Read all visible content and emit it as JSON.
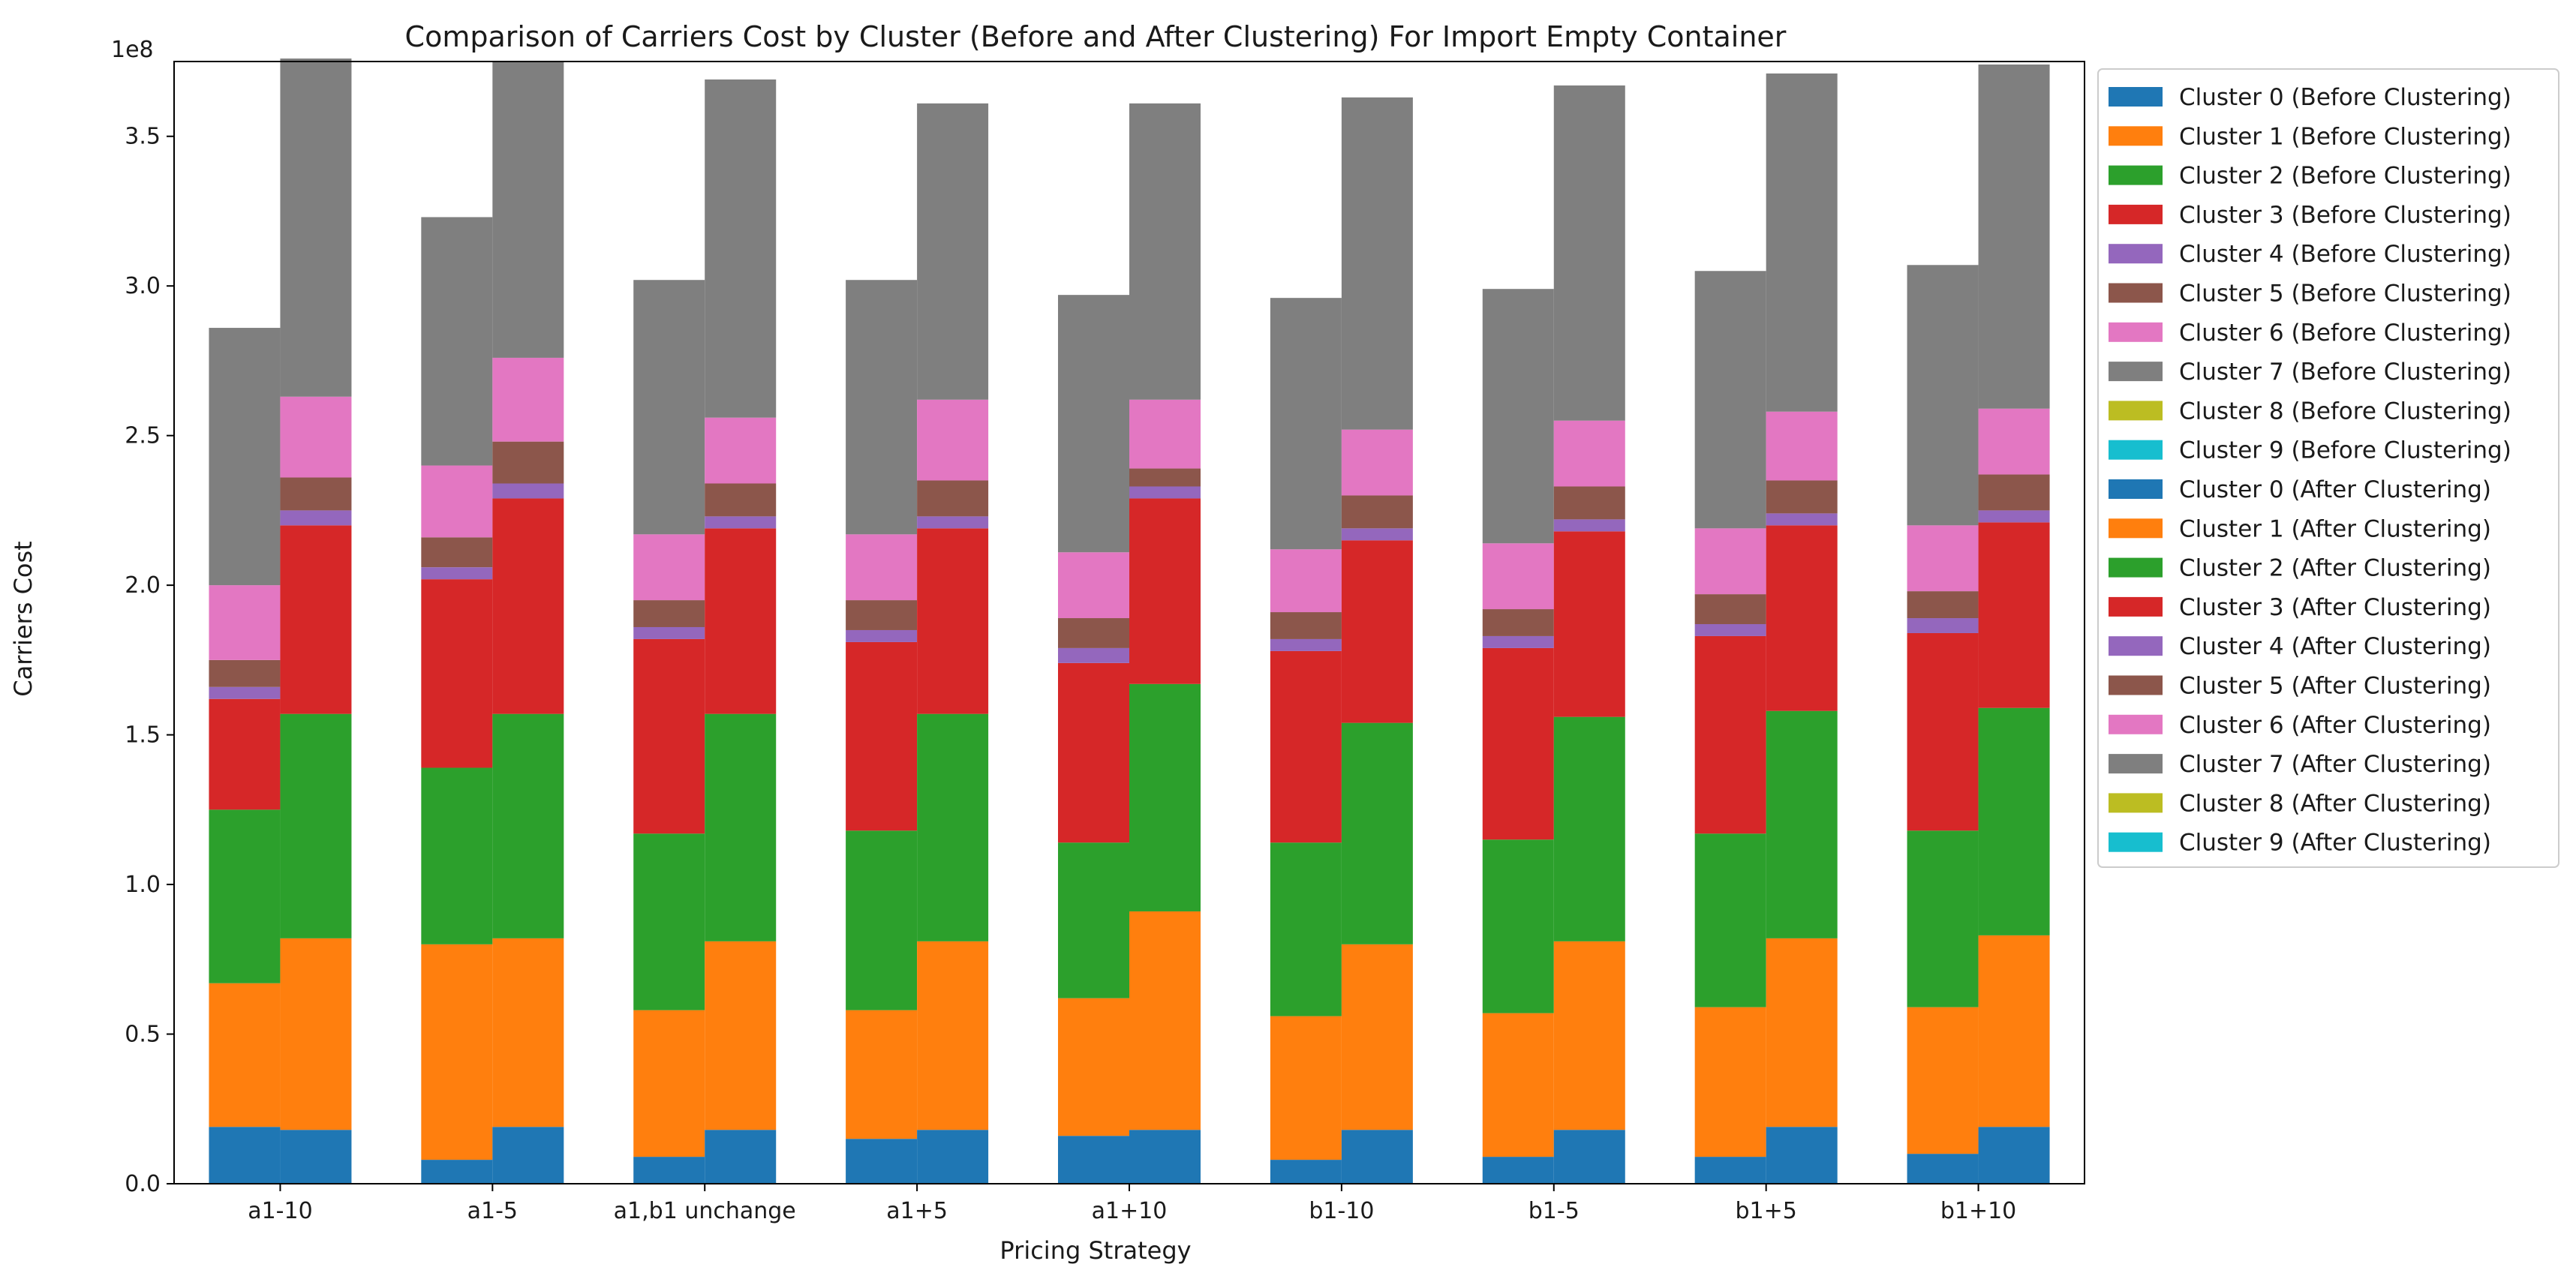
{
  "chart_data": {
    "type": "bar",
    "subtype": "stacked-grouped",
    "title": "Comparison of Carriers Cost by Cluster (Before and After Clustering) For Import Empty Container",
    "xlabel": "Pricing Strategy",
    "ylabel": "Carriers Cost",
    "y_exponent_label": "1e8",
    "ylim": [
      0,
      3.75
    ],
    "yticks": [
      0.0,
      0.5,
      1.0,
      1.5,
      2.0,
      2.5,
      3.0,
      3.5
    ],
    "ytick_labels": [
      "0.0",
      "0.5",
      "1.0",
      "1.5",
      "2.0",
      "2.5",
      "3.0",
      "3.5"
    ],
    "value_scale": "1e8",
    "legend_position": "outside-right-top",
    "categories": [
      "a1-10",
      "a1-5",
      "a1,b1 unchange",
      "a1+5",
      "a1+10",
      "b1-10",
      "b1-5",
      "b1+5",
      "b1+10"
    ],
    "cluster_colors": [
      "#1f77b4",
      "#ff7f0e",
      "#2ca02c",
      "#d62728",
      "#9467bd",
      "#8c564b",
      "#e377c2",
      "#7f7f7f",
      "#bcbd22",
      "#17becf"
    ],
    "series": [
      {
        "name": "Cluster 0 (Before Clustering)",
        "group": "before",
        "cluster": 0,
        "values": [
          0.19,
          0.08,
          0.09,
          0.15,
          0.16,
          0.08,
          0.09,
          0.09,
          0.1
        ]
      },
      {
        "name": "Cluster 1 (Before Clustering)",
        "group": "before",
        "cluster": 1,
        "values": [
          0.48,
          0.72,
          0.49,
          0.43,
          0.46,
          0.48,
          0.48,
          0.5,
          0.49
        ]
      },
      {
        "name": "Cluster 2 (Before Clustering)",
        "group": "before",
        "cluster": 2,
        "values": [
          0.58,
          0.59,
          0.59,
          0.6,
          0.52,
          0.58,
          0.58,
          0.58,
          0.59
        ]
      },
      {
        "name": "Cluster 3 (Before Clustering)",
        "group": "before",
        "cluster": 3,
        "values": [
          0.37,
          0.63,
          0.65,
          0.63,
          0.6,
          0.64,
          0.64,
          0.66,
          0.66
        ]
      },
      {
        "name": "Cluster 4 (Before Clustering)",
        "group": "before",
        "cluster": 4,
        "values": [
          0.04,
          0.04,
          0.04,
          0.04,
          0.05,
          0.04,
          0.04,
          0.04,
          0.05
        ]
      },
      {
        "name": "Cluster 5 (Before Clustering)",
        "group": "before",
        "cluster": 5,
        "values": [
          0.09,
          0.1,
          0.09,
          0.1,
          0.1,
          0.09,
          0.09,
          0.1,
          0.09
        ]
      },
      {
        "name": "Cluster 6 (Before Clustering)",
        "group": "before",
        "cluster": 6,
        "values": [
          0.25,
          0.24,
          0.22,
          0.22,
          0.22,
          0.21,
          0.22,
          0.22,
          0.22
        ]
      },
      {
        "name": "Cluster 7 (Before Clustering)",
        "group": "before",
        "cluster": 7,
        "values": [
          0.86,
          0.83,
          0.85,
          0.85,
          0.86,
          0.84,
          0.85,
          0.86,
          0.87
        ]
      },
      {
        "name": "Cluster 8 (Before Clustering)",
        "group": "before",
        "cluster": 8,
        "values": [
          0,
          0,
          0,
          0,
          0,
          0,
          0,
          0,
          0
        ]
      },
      {
        "name": "Cluster 9 (Before Clustering)",
        "group": "before",
        "cluster": 9,
        "values": [
          0,
          0,
          0,
          0,
          0,
          0,
          0,
          0,
          0
        ]
      },
      {
        "name": "Cluster 0 (After Clustering)",
        "group": "after",
        "cluster": 0,
        "values": [
          0.18,
          0.19,
          0.18,
          0.18,
          0.18,
          0.18,
          0.18,
          0.19,
          0.19
        ]
      },
      {
        "name": "Cluster 1 (After Clustering)",
        "group": "after",
        "cluster": 1,
        "values": [
          0.64,
          0.63,
          0.63,
          0.63,
          0.73,
          0.62,
          0.63,
          0.63,
          0.64
        ]
      },
      {
        "name": "Cluster 2 (After Clustering)",
        "group": "after",
        "cluster": 2,
        "values": [
          0.75,
          0.75,
          0.76,
          0.76,
          0.76,
          0.74,
          0.75,
          0.76,
          0.76
        ]
      },
      {
        "name": "Cluster 3 (After Clustering)",
        "group": "after",
        "cluster": 3,
        "values": [
          0.63,
          0.72,
          0.62,
          0.62,
          0.62,
          0.61,
          0.62,
          0.62,
          0.62
        ]
      },
      {
        "name": "Cluster 4 (After Clustering)",
        "group": "after",
        "cluster": 4,
        "values": [
          0.05,
          0.05,
          0.04,
          0.04,
          0.04,
          0.04,
          0.04,
          0.04,
          0.04
        ]
      },
      {
        "name": "Cluster 5 (After Clustering)",
        "group": "after",
        "cluster": 5,
        "values": [
          0.11,
          0.14,
          0.11,
          0.12,
          0.06,
          0.11,
          0.11,
          0.11,
          0.12
        ]
      },
      {
        "name": "Cluster 6 (After Clustering)",
        "group": "after",
        "cluster": 6,
        "values": [
          0.27,
          0.28,
          0.22,
          0.27,
          0.23,
          0.22,
          0.22,
          0.23,
          0.22
        ]
      },
      {
        "name": "Cluster 7 (After Clustering)",
        "group": "after",
        "cluster": 7,
        "values": [
          1.13,
          0.99,
          1.13,
          0.99,
          0.99,
          1.11,
          1.12,
          1.13,
          1.15
        ]
      },
      {
        "name": "Cluster 8 (After Clustering)",
        "group": "after",
        "cluster": 8,
        "values": [
          0,
          0,
          0,
          0,
          0,
          0,
          0,
          0,
          0
        ]
      },
      {
        "name": "Cluster 9 (After Clustering)",
        "group": "after",
        "cluster": 9,
        "values": [
          0,
          0,
          0,
          0,
          0,
          0,
          0,
          0,
          0
        ]
      }
    ]
  }
}
